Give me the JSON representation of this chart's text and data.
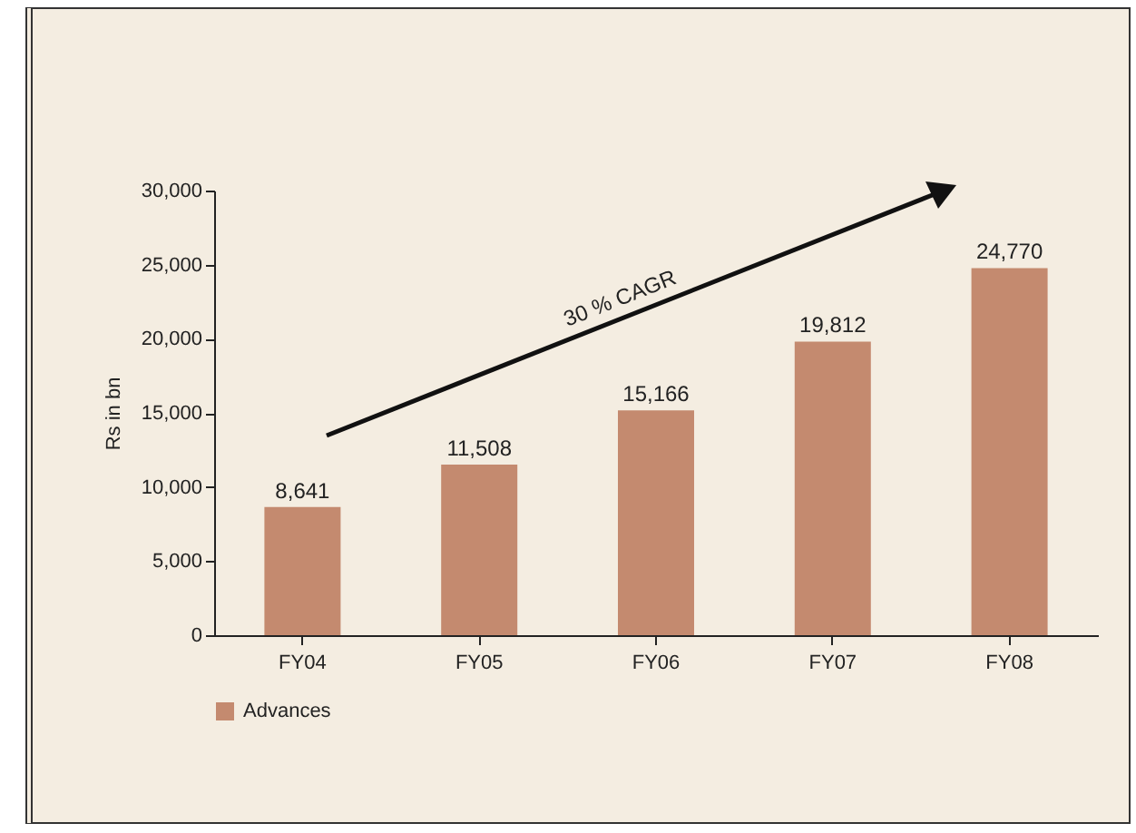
{
  "chart_data": {
    "type": "bar",
    "ylabel": "Rs in bn",
    "categories": [
      "FY04",
      "FY05",
      "FY06",
      "FY07",
      "FY08"
    ],
    "series": [
      {
        "name": "Advances",
        "color": "#c48a6f",
        "values": [
          8641,
          11508,
          15166,
          19812,
          24770
        ],
        "value_labels": [
          "8,641",
          "11,508",
          "15,166",
          "19,812",
          "24,770"
        ]
      }
    ],
    "ylim": [
      0,
      30000
    ],
    "yticks": [
      0,
      {
        "value": 5000,
        "label": "5,000"
      },
      {
        "value": 10000,
        "label": "10,000"
      },
      {
        "value": 15000,
        "label": "15,000"
      },
      {
        "value": 20000,
        "label": "20,000"
      },
      {
        "value": 25000,
        "label": "25,000"
      },
      {
        "value": 30000,
        "label": "30,000"
      }
    ],
    "legend": "bottom",
    "grid": false,
    "annotations": [
      "30 % CAGR"
    ]
  }
}
